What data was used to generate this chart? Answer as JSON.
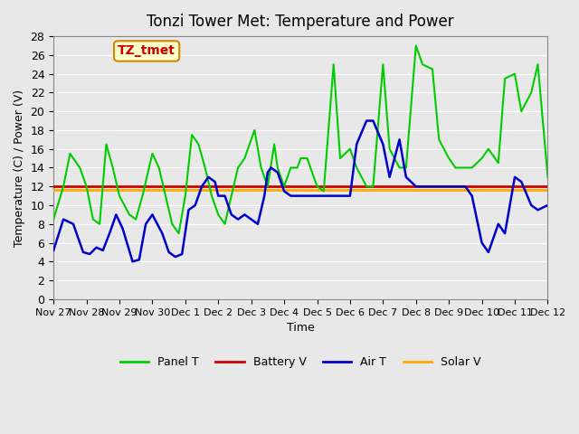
{
  "title": "Tonzi Tower Met: Temperature and Power",
  "xlabel": "Time",
  "ylabel": "Temperature (C) / Power (V)",
  "ylim": [
    0,
    28
  ],
  "yticks": [
    0,
    2,
    4,
    6,
    8,
    10,
    12,
    14,
    16,
    18,
    20,
    22,
    24,
    26,
    28
  ],
  "bg_color": "#e8e8e8",
  "plot_bg_color": "#e8e8e8",
  "watermark_text": "TZ_tmet",
  "watermark_bg": "#ffffcc",
  "watermark_fg": "#cc0000",
  "legend_entries": [
    "Panel T",
    "Battery V",
    "Air T",
    "Solar V"
  ],
  "legend_colors": [
    "#00cc00",
    "#cc0000",
    "#0000cc",
    "#ffaa00"
  ],
  "x_start_day": 0,
  "x_end_day": 15,
  "xtick_labels": [
    "Nov 27",
    "Nov 28",
    "Nov 29",
    "Nov 30",
    "Dec 1",
    "Dec 2",
    "Dec 3",
    "Dec 4",
    "Dec 5",
    "Dec 6",
    "Dec 7",
    "Dec 8",
    "Dec 9",
    "Dec 10",
    "Dec 11",
    "Dec 12"
  ],
  "xtick_positions": [
    0,
    1,
    2,
    3,
    4,
    5,
    6,
    7,
    8,
    9,
    10,
    11,
    12,
    13,
    14,
    15
  ],
  "battery_v": 12.0,
  "solar_v": 11.6,
  "panel_t_x": [
    0,
    0.3,
    0.5,
    0.8,
    1.0,
    1.2,
    1.4,
    1.6,
    1.8,
    2.0,
    2.3,
    2.5,
    2.7,
    3.0,
    3.2,
    3.4,
    3.6,
    3.8,
    4.0,
    4.2,
    4.4,
    4.6,
    4.8,
    5.0,
    5.2,
    5.4,
    5.6,
    5.8,
    6.0,
    6.1,
    6.2,
    6.3,
    6.5,
    6.7,
    6.8,
    7.0,
    7.2,
    7.4,
    7.5,
    7.7,
    7.9,
    8.0,
    8.2,
    8.5,
    8.7,
    9.0,
    9.2,
    9.5,
    9.7,
    10.0,
    10.2,
    10.5,
    10.7,
    11.0,
    11.2,
    11.5,
    11.7,
    12.0,
    12.2,
    12.5,
    12.7,
    13.0,
    13.2,
    13.5,
    13.7,
    14.0,
    14.2,
    14.5,
    14.7,
    15.0
  ],
  "panel_t_y": [
    8.5,
    12,
    15.5,
    14,
    12,
    8.5,
    8,
    16.5,
    14,
    11,
    9,
    8.5,
    11,
    15.5,
    14,
    11,
    8,
    7,
    11,
    17.5,
    16.5,
    14,
    11,
    9,
    8,
    11,
    14,
    15,
    17,
    18,
    16,
    14,
    12,
    16.5,
    14,
    12,
    14,
    14,
    15,
    15,
    13,
    12,
    11.5,
    25,
    15,
    16,
    14,
    12,
    12,
    25,
    16,
    14,
    14,
    27,
    25,
    24.5,
    17,
    15,
    14,
    14,
    14,
    15,
    16,
    14.5,
    23.5,
    24,
    20,
    22,
    25,
    13
  ],
  "air_t_x": [
    0,
    0.3,
    0.6,
    0.9,
    1.1,
    1.3,
    1.5,
    1.7,
    1.9,
    2.1,
    2.4,
    2.6,
    2.8,
    3.0,
    3.3,
    3.5,
    3.7,
    3.9,
    4.1,
    4.3,
    4.5,
    4.7,
    4.9,
    5.0,
    5.2,
    5.4,
    5.6,
    5.8,
    6.0,
    6.2,
    6.4,
    6.5,
    6.6,
    6.8,
    7.0,
    7.2,
    7.4,
    7.6,
    7.8,
    8.0,
    8.2,
    8.5,
    8.7,
    9.0,
    9.2,
    9.5,
    9.7,
    10.0,
    10.2,
    10.5,
    10.7,
    11.0,
    11.2,
    11.5,
    11.7,
    12.0,
    12.2,
    12.5,
    12.7,
    13.0,
    13.2,
    13.5,
    13.7,
    14.0,
    14.2,
    14.5,
    14.7,
    15.0
  ],
  "air_t_y": [
    5.2,
    8.5,
    8,
    5,
    4.8,
    5.5,
    5.2,
    7,
    9,
    7.5,
    4,
    4.2,
    8,
    9,
    7,
    5,
    4.5,
    4.8,
    9.5,
    10,
    12,
    13,
    12.5,
    11,
    11,
    9,
    8.5,
    9,
    8.5,
    8,
    11,
    13.5,
    14,
    13.5,
    11.5,
    11,
    11,
    11,
    11,
    11,
    11,
    11,
    11,
    11,
    16.5,
    19,
    19,
    16.5,
    13,
    17,
    13,
    12,
    12,
    12,
    12,
    12,
    12,
    12,
    11,
    6,
    5,
    8,
    7,
    13,
    12.5,
    10,
    9.5,
    10
  ]
}
